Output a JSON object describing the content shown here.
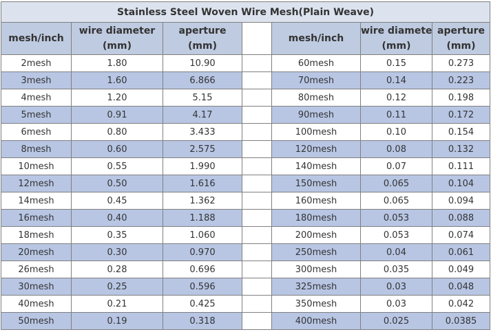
{
  "table": {
    "title": "Stainless Steel Woven Wire Mesh(Plain Weave)",
    "headers": {
      "mesh": "mesh/inch",
      "wire_line1": "wire diameter",
      "wire_line2": "(mm)",
      "aperture_line1": "aperture",
      "aperture_line2": "(mm)"
    },
    "rows": [
      {
        "left": [
          "2mesh",
          "1.80",
          "10.90"
        ],
        "right": [
          "60mesh",
          "0.15",
          "0.273"
        ]
      },
      {
        "left": [
          "3mesh",
          "1.60",
          "6.866"
        ],
        "right": [
          "70mesh",
          "0.14",
          "0.223"
        ]
      },
      {
        "left": [
          "4mesh",
          "1.20",
          "5.15"
        ],
        "right": [
          "80mesh",
          "0.12",
          "0.198"
        ]
      },
      {
        "left": [
          "5mesh",
          "0.91",
          "4.17"
        ],
        "right": [
          "90mesh",
          "0.11",
          "0.172"
        ]
      },
      {
        "left": [
          "6mesh",
          "0.80",
          "3.433"
        ],
        "right": [
          "100mesh",
          "0.10",
          "0.154"
        ]
      },
      {
        "left": [
          "8mesh",
          "0.60",
          "2.575"
        ],
        "right": [
          "120mesh",
          "0.08",
          "0.132"
        ]
      },
      {
        "left": [
          "10mesh",
          "0.55",
          "1.990"
        ],
        "right": [
          "140mesh",
          "0.07",
          "0.111"
        ]
      },
      {
        "left": [
          "12mesh",
          "0.50",
          "1.616"
        ],
        "right": [
          "150mesh",
          "0.065",
          "0.104"
        ]
      },
      {
        "left": [
          "14mesh",
          "0.45",
          "1.362"
        ],
        "right": [
          "160mesh",
          "0.065",
          "0.094"
        ]
      },
      {
        "left": [
          "16mesh",
          "0.40",
          "1.188"
        ],
        "right": [
          "180mesh",
          "0.053",
          "0.088"
        ]
      },
      {
        "left": [
          "18mesh",
          "0.35",
          "1.060"
        ],
        "right": [
          "200mesh",
          "0.053",
          "0.074"
        ]
      },
      {
        "left": [
          "20mesh",
          "0.30",
          "0.970"
        ],
        "right": [
          "250mesh",
          "0.04",
          "0.061"
        ]
      },
      {
        "left": [
          "26mesh",
          "0.28",
          "0.696"
        ],
        "right": [
          "300mesh",
          "0.035",
          "0.049"
        ]
      },
      {
        "left": [
          "30mesh",
          "0.25",
          "0.596"
        ],
        "right": [
          "325mesh",
          "0.03",
          "0.048"
        ]
      },
      {
        "left": [
          "40mesh",
          "0.21",
          "0.425"
        ],
        "right": [
          "350mesh",
          "0.03",
          "0.042"
        ]
      },
      {
        "left": [
          "50mesh",
          "0.19",
          "0.318"
        ],
        "right": [
          "400mesh",
          "0.025",
          "0.0385"
        ]
      }
    ]
  }
}
